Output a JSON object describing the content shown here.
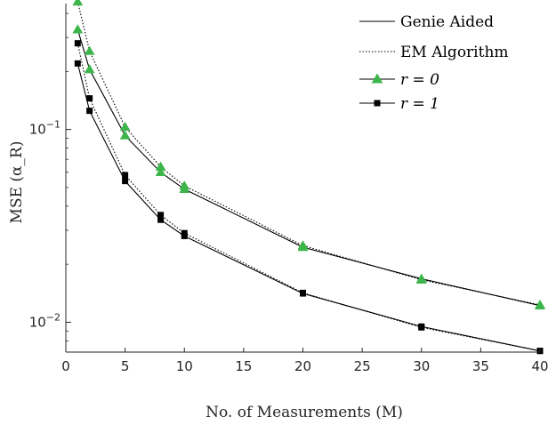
{
  "chart_data": {
    "type": "line",
    "xlabel": "No. of Measurements (M)",
    "ylabel": "MSE (α_R)",
    "x_ticks": [
      0,
      5,
      10,
      15,
      20,
      25,
      30,
      35,
      40
    ],
    "xlim": [
      0,
      40
    ],
    "ylim": [
      0.007,
      0.45
    ],
    "y_scale": "log",
    "y_ticks": [
      {
        "value": 0.1,
        "label": "10^-1"
      },
      {
        "value": 0.01,
        "label": "10^-2"
      }
    ],
    "grid": false,
    "legend_position": "top-right",
    "legend": [
      {
        "label": "Genie Aided",
        "style": "solid"
      },
      {
        "label": "EM Algorithm",
        "style": "dotted"
      },
      {
        "label": "r = 0",
        "marker": "triangle"
      },
      {
        "label": "r = 1",
        "marker": "square"
      }
    ],
    "x": [
      1,
      2,
      5,
      8,
      10,
      20,
      30,
      40
    ],
    "series": [
      {
        "name": "Genie Aided, r = 0",
        "style": "solid",
        "marker": "triangle",
        "color": "#000000",
        "marker_color": "#3cb54a",
        "values": [
          0.33,
          0.205,
          0.093,
          0.06,
          0.049,
          0.0245,
          0.0168,
          0.0122
        ]
      },
      {
        "name": "EM Algorithm, r = 0",
        "style": "dotted",
        "marker": "triangle",
        "color": "#000000",
        "marker_color": "#3cb54a",
        "values": [
          0.46,
          0.255,
          0.103,
          0.064,
          0.051,
          0.025,
          0.0166,
          0.0123
        ]
      },
      {
        "name": "Genie Aided, r = 1",
        "style": "solid",
        "marker": "square",
        "color": "#000000",
        "marker_color": "#000000",
        "values": [
          0.22,
          0.125,
          0.054,
          0.034,
          0.028,
          0.0141,
          0.0095,
          0.0071
        ]
      },
      {
        "name": "EM Algorithm, r = 1",
        "style": "dotted",
        "marker": "square",
        "color": "#000000",
        "marker_color": "#000000",
        "values": [
          0.28,
          0.145,
          0.058,
          0.036,
          0.029,
          0.0142,
          0.0094,
          0.0071
        ]
      }
    ]
  }
}
